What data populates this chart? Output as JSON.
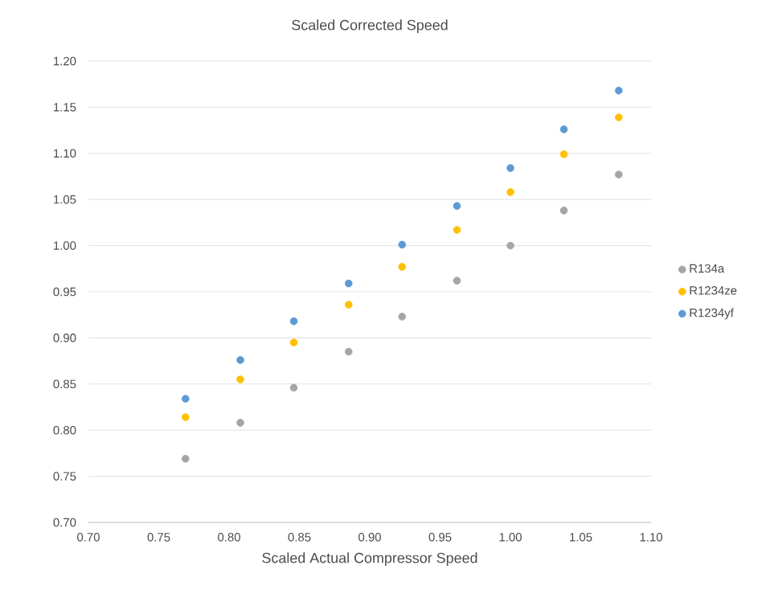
{
  "chart_data": {
    "type": "scatter",
    "title": "Scaled Corrected Speed",
    "xlabel": "Scaled Actual Compressor Speed",
    "x": [
      0.769,
      0.808,
      0.846,
      0.885,
      0.923,
      0.962,
      1.0,
      1.038,
      1.077
    ],
    "series": [
      {
        "name": "R134a",
        "color": "#a5a5a5",
        "values": [
          0.769,
          0.808,
          0.846,
          0.885,
          0.923,
          0.962,
          1.0,
          1.038,
          1.077
        ]
      },
      {
        "name": "R1234ze",
        "color": "#ffc000",
        "values": [
          0.814,
          0.855,
          0.895,
          0.936,
          0.977,
          1.017,
          1.058,
          1.099,
          1.139
        ]
      },
      {
        "name": "R1234yf",
        "color": "#5b9bd5",
        "values": [
          0.834,
          0.876,
          0.918,
          0.959,
          1.001,
          1.043,
          1.084,
          1.126,
          1.168
        ]
      }
    ],
    "xlim": [
      0.7,
      1.1
    ],
    "ylim": [
      0.7,
      1.2
    ],
    "xticks": [
      {
        "value": 0.7,
        "label": "0.70"
      },
      {
        "value": 0.75,
        "label": "0.75"
      },
      {
        "value": 0.8,
        "label": "0.80"
      },
      {
        "value": 0.85,
        "label": "0.85"
      },
      {
        "value": 0.9,
        "label": "0.90"
      },
      {
        "value": 0.95,
        "label": "0.95"
      },
      {
        "value": 1.0,
        "label": "1.00"
      },
      {
        "value": 1.05,
        "label": "1.05"
      },
      {
        "value": 1.1,
        "label": "1.10"
      }
    ],
    "yticks": [
      {
        "value": 0.7,
        "label": "0.70"
      },
      {
        "value": 0.75,
        "label": "0.75"
      },
      {
        "value": 0.8,
        "label": "0.80"
      },
      {
        "value": 0.85,
        "label": "0.85"
      },
      {
        "value": 0.9,
        "label": "0.90"
      },
      {
        "value": 0.95,
        "label": "0.95"
      },
      {
        "value": 1.0,
        "label": "1.00"
      },
      {
        "value": 1.05,
        "label": "1.05"
      },
      {
        "value": 1.1,
        "label": "1.10"
      },
      {
        "value": 1.15,
        "label": "1.15"
      },
      {
        "value": 1.2,
        "label": "1.20"
      }
    ],
    "grid": "y",
    "legend": "right"
  }
}
